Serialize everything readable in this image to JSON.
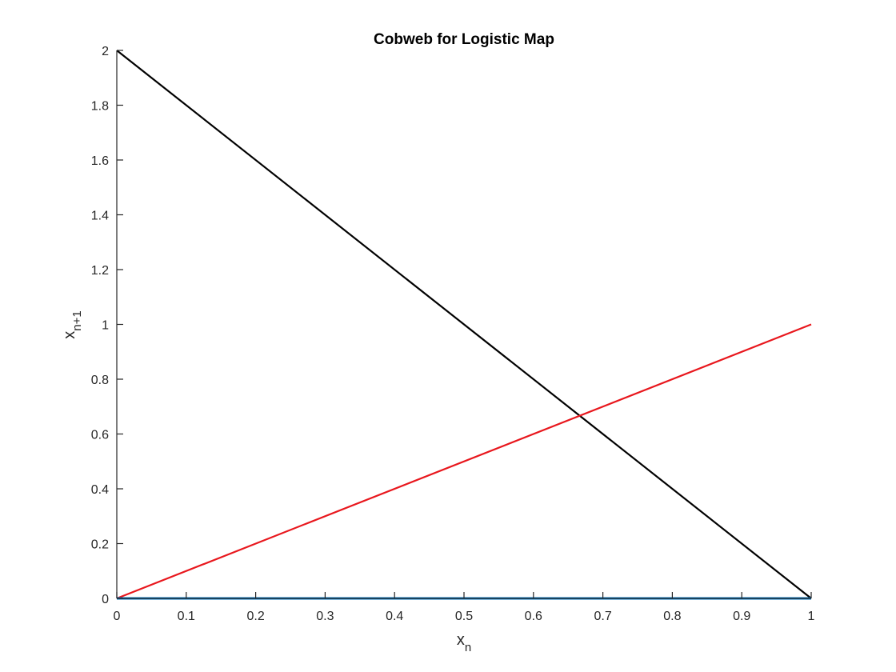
{
  "chart_data": {
    "type": "line",
    "title": "Cobweb for Logistic Map",
    "xlabel": {
      "base": "x",
      "subscript": "n"
    },
    "ylabel": {
      "base": "x",
      "subscript": "n+1"
    },
    "xlim": [
      0,
      1
    ],
    "ylim": [
      0,
      2
    ],
    "xticks": [
      0,
      0.1,
      0.2,
      0.3,
      0.4,
      0.5,
      0.6,
      0.7,
      0.8,
      0.9,
      1
    ],
    "xtick_labels": [
      "0",
      "0.1",
      "0.2",
      "0.3",
      "0.4",
      "0.5",
      "0.6",
      "0.7",
      "0.8",
      "0.9",
      "1"
    ],
    "yticks": [
      0,
      0.2,
      0.4,
      0.6,
      0.8,
      1,
      1.2,
      1.4,
      1.6,
      1.8,
      2
    ],
    "ytick_labels": [
      "0",
      "0.2",
      "0.4",
      "0.6",
      "0.8",
      "1",
      "1.2",
      "1.4",
      "1.6",
      "1.8",
      "2"
    ],
    "grid": false,
    "legend": "none",
    "series": [
      {
        "x": [
          0,
          1
        ],
        "y": [
          2,
          0
        ],
        "color": "#000000"
      },
      {
        "x": [
          0,
          1
        ],
        "y": [
          0,
          1
        ],
        "color": "#e8171d"
      },
      {
        "x": [
          0,
          1
        ],
        "y": [
          0,
          0
        ],
        "color": "#0072bd"
      }
    ]
  }
}
